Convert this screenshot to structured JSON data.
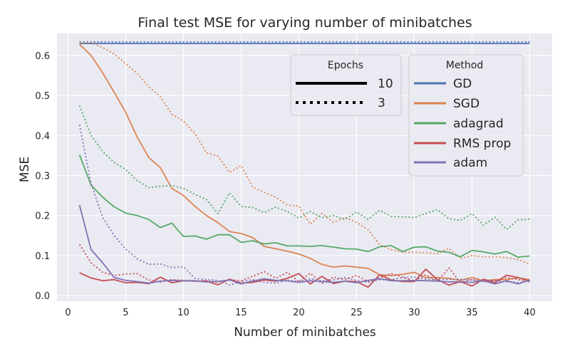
{
  "chart_data": {
    "type": "line",
    "title": "Final test MSE for varying number of minibatches",
    "xlabel": "Number of minibatches",
    "ylabel": "MSE",
    "xlim": [
      -0.95,
      41.95
    ],
    "ylim": [
      -0.014,
      0.655
    ],
    "xticks": [
      0,
      5,
      10,
      15,
      20,
      25,
      30,
      35,
      40
    ],
    "yticks": [
      0.0,
      0.1,
      0.2,
      0.3,
      0.4,
      0.5,
      0.6
    ],
    "ytick_labels": [
      "0.0",
      "0.1",
      "0.2",
      "0.3",
      "0.4",
      "0.5",
      "0.6"
    ],
    "grid": true,
    "x": [
      1,
      2,
      3,
      4,
      5,
      6,
      7,
      8,
      9,
      10,
      11,
      12,
      13,
      14,
      15,
      16,
      17,
      18,
      19,
      20,
      21,
      22,
      23,
      24,
      25,
      26,
      27,
      28,
      29,
      30,
      31,
      32,
      33,
      34,
      35,
      36,
      37,
      38,
      39,
      40
    ],
    "series": [
      {
        "method": "GD",
        "epochs": "10",
        "color": "#4c72b0",
        "dash": "solid",
        "values": [
          0.63,
          0.63,
          0.63,
          0.63,
          0.63,
          0.63,
          0.63,
          0.63,
          0.63,
          0.63,
          0.63,
          0.63,
          0.63,
          0.63,
          0.63,
          0.63,
          0.63,
          0.63,
          0.63,
          0.63,
          0.63,
          0.63,
          0.63,
          0.63,
          0.63,
          0.63,
          0.63,
          0.63,
          0.63,
          0.63,
          0.63,
          0.63,
          0.63,
          0.63,
          0.63,
          0.63,
          0.63,
          0.63,
          0.63,
          0.63
        ]
      },
      {
        "method": "GD",
        "epochs": "3",
        "color": "#4c72b0",
        "dash": "dotted",
        "values": [
          0.634,
          0.634,
          0.634,
          0.634,
          0.634,
          0.634,
          0.634,
          0.634,
          0.634,
          0.634,
          0.634,
          0.634,
          0.634,
          0.634,
          0.634,
          0.634,
          0.634,
          0.634,
          0.634,
          0.634,
          0.634,
          0.634,
          0.634,
          0.634,
          0.634,
          0.634,
          0.634,
          0.634,
          0.634,
          0.634,
          0.634,
          0.634,
          0.634,
          0.634,
          0.634,
          0.634,
          0.634,
          0.634,
          0.634,
          0.634
        ]
      },
      {
        "method": "SGD",
        "epochs": "10",
        "color": "#dd8452",
        "dash": "solid",
        "values": [
          0.628,
          0.6,
          0.557,
          0.508,
          0.458,
          0.396,
          0.345,
          0.32,
          0.268,
          0.25,
          0.223,
          0.2,
          0.182,
          0.16,
          0.155,
          0.145,
          0.123,
          0.117,
          0.111,
          0.104,
          0.093,
          0.078,
          0.071,
          0.074,
          0.071,
          0.068,
          0.052,
          0.05,
          0.053,
          0.058,
          0.045,
          0.045,
          0.043,
          0.038,
          0.045,
          0.037,
          0.04,
          0.04,
          0.044,
          0.04
        ]
      },
      {
        "method": "SGD",
        "epochs": "3",
        "color": "#dd8452",
        "dash": "dotted",
        "values": [
          0.632,
          0.632,
          0.62,
          0.604,
          0.58,
          0.555,
          0.522,
          0.497,
          0.453,
          0.436,
          0.405,
          0.357,
          0.348,
          0.308,
          0.325,
          0.271,
          0.258,
          0.246,
          0.226,
          0.224,
          0.178,
          0.205,
          0.183,
          0.195,
          0.183,
          0.165,
          0.127,
          0.115,
          0.108,
          0.108,
          0.107,
          0.105,
          0.118,
          0.093,
          0.1,
          0.097,
          0.097,
          0.095,
          0.09,
          0.079
        ]
      },
      {
        "method": "adagrad",
        "epochs": "10",
        "color": "#55a868",
        "dash": "solid",
        "values": [
          0.352,
          0.276,
          0.246,
          0.222,
          0.206,
          0.2,
          0.19,
          0.17,
          0.181,
          0.148,
          0.149,
          0.141,
          0.152,
          0.152,
          0.133,
          0.137,
          0.129,
          0.132,
          0.124,
          0.124,
          0.123,
          0.125,
          0.121,
          0.117,
          0.116,
          0.11,
          0.122,
          0.125,
          0.11,
          0.121,
          0.122,
          0.111,
          0.108,
          0.097,
          0.113,
          0.109,
          0.104,
          0.11,
          0.096,
          0.099
        ]
      },
      {
        "method": "adagrad",
        "epochs": "3",
        "color": "#55a868",
        "dash": "dotted",
        "values": [
          0.475,
          0.4,
          0.36,
          0.333,
          0.315,
          0.287,
          0.27,
          0.273,
          0.275,
          0.268,
          0.253,
          0.24,
          0.205,
          0.257,
          0.223,
          0.22,
          0.207,
          0.221,
          0.21,
          0.194,
          0.21,
          0.195,
          0.2,
          0.19,
          0.209,
          0.19,
          0.213,
          0.198,
          0.197,
          0.195,
          0.205,
          0.215,
          0.192,
          0.188,
          0.205,
          0.176,
          0.196,
          0.165,
          0.189,
          0.191
        ]
      },
      {
        "method": "RMS prop",
        "epochs": "10",
        "color": "#c44e52",
        "dash": "solid",
        "values": [
          0.057,
          0.044,
          0.037,
          0.04,
          0.032,
          0.033,
          0.03,
          0.046,
          0.032,
          0.037,
          0.036,
          0.036,
          0.027,
          0.041,
          0.031,
          0.033,
          0.039,
          0.036,
          0.043,
          0.055,
          0.029,
          0.048,
          0.03,
          0.036,
          0.035,
          0.021,
          0.052,
          0.039,
          0.035,
          0.035,
          0.066,
          0.04,
          0.026,
          0.035,
          0.024,
          0.041,
          0.032,
          0.051,
          0.045,
          0.036
        ]
      },
      {
        "method": "RMS prop",
        "epochs": "3",
        "color": "#c44e52",
        "dash": "dotted",
        "values": [
          0.128,
          0.082,
          0.058,
          0.05,
          0.054,
          0.055,
          0.039,
          0.034,
          0.04,
          0.038,
          0.036,
          0.037,
          0.034,
          0.04,
          0.037,
          0.048,
          0.06,
          0.043,
          0.058,
          0.035,
          0.056,
          0.03,
          0.046,
          0.04,
          0.05,
          0.035,
          0.044,
          0.055,
          0.046,
          0.036,
          0.052,
          0.036,
          0.069,
          0.033,
          0.04,
          0.035,
          0.037,
          0.045,
          0.04,
          0.035
        ]
      },
      {
        "method": "adam",
        "epochs": "10",
        "color": "#8172b3",
        "dash": "solid",
        "values": [
          0.226,
          0.115,
          0.082,
          0.045,
          0.038,
          0.035,
          0.031,
          0.036,
          0.038,
          0.037,
          0.037,
          0.034,
          0.035,
          0.039,
          0.029,
          0.036,
          0.042,
          0.038,
          0.037,
          0.033,
          0.037,
          0.035,
          0.033,
          0.036,
          0.032,
          0.038,
          0.042,
          0.037,
          0.037,
          0.038,
          0.037,
          0.036,
          0.034,
          0.035,
          0.033,
          0.037,
          0.029,
          0.037,
          0.029,
          0.039
        ]
      },
      {
        "method": "adam",
        "epochs": "3",
        "color": "#8172b3",
        "dash": "dotted",
        "values": [
          0.427,
          0.28,
          0.196,
          0.15,
          0.116,
          0.092,
          0.078,
          0.079,
          0.07,
          0.072,
          0.043,
          0.04,
          0.038,
          0.026,
          0.035,
          0.04,
          0.033,
          0.031,
          0.038,
          0.035,
          0.042,
          0.037,
          0.039,
          0.045,
          0.038,
          0.033,
          0.04,
          0.04,
          0.045,
          0.046,
          0.041,
          0.04,
          0.04,
          0.041,
          0.039,
          0.036,
          0.038,
          0.034,
          0.033,
          0.035
        ]
      }
    ],
    "legend_epochs": {
      "title": "Epochs",
      "entries": [
        {
          "label": "10",
          "dash": "solid"
        },
        {
          "label": "3",
          "dash": "dotted"
        }
      ]
    },
    "legend_method": {
      "title": "Method",
      "entries": [
        {
          "label": "GD",
          "color": "#4c72b0"
        },
        {
          "label": "SGD",
          "color": "#dd8452"
        },
        {
          "label": "adagrad",
          "color": "#55a868"
        },
        {
          "label": "RMS prop",
          "color": "#c44e52"
        },
        {
          "label": "adam",
          "color": "#8172b3"
        }
      ]
    },
    "colors": {
      "plot_background": "#eaeaf2",
      "grid": "#ffffff",
      "text": "#262626"
    }
  }
}
